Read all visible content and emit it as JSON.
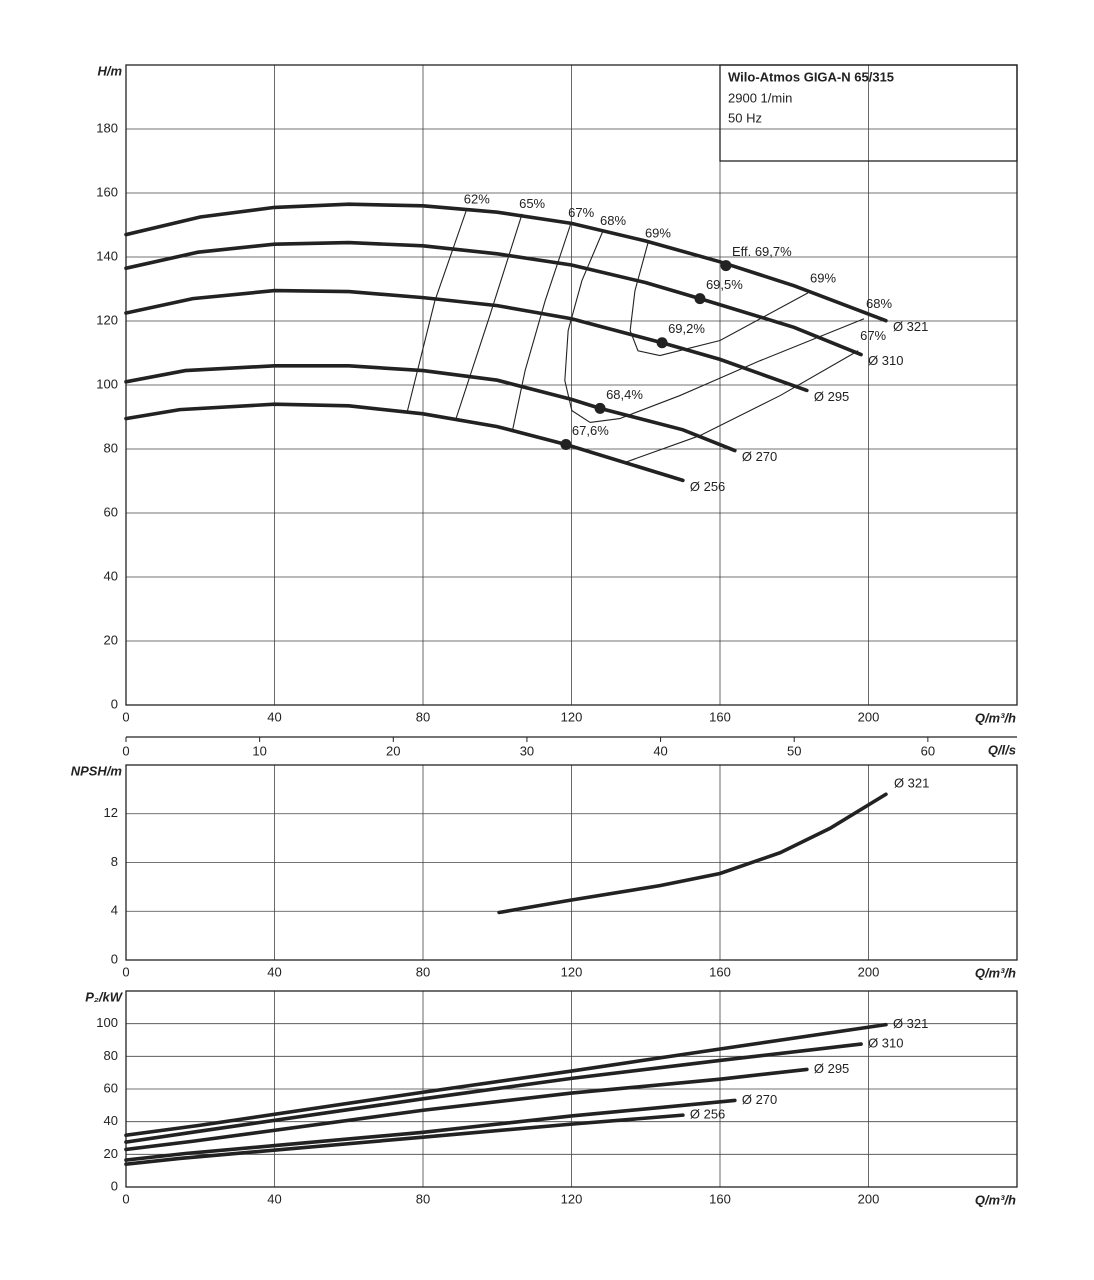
{
  "chart_data": [
    {
      "type": "line",
      "title": "Wilo-Atmos GIGA-N 65/315",
      "subtitle": [
        "2900 1/min",
        "50 Hz"
      ],
      "ylabel": "H/m",
      "xlabel": "Q/m³/h",
      "xlim": [
        0,
        240
      ],
      "xticks": [
        0,
        40,
        80,
        120,
        160,
        200
      ],
      "ylim": [
        0,
        200
      ],
      "yticks": [
        0,
        20,
        40,
        60,
        80,
        100,
        120,
        140,
        160,
        180
      ],
      "grid": true,
      "color": "#222",
      "series": [
        {
          "name": "Ø 321",
          "x": [
            0,
            20,
            40,
            60,
            80,
            100,
            120,
            140,
            160,
            180,
            204.7
          ],
          "values": [
            147,
            152.5,
            155.5,
            156.5,
            156,
            154,
            150.5,
            145,
            138.5,
            131,
            120.1
          ]
        },
        {
          "name": "Ø 310",
          "x": [
            0,
            19.4,
            40,
            60,
            80,
            100,
            120,
            140,
            154.6,
            180,
            198
          ],
          "values": [
            136.5,
            141.5,
            144,
            144.5,
            143.5,
            141,
            137.5,
            132,
            127,
            118,
            109.5
          ]
        },
        {
          "name": "Ø 295",
          "x": [
            0,
            18,
            40,
            60,
            80,
            100,
            120,
            144.4,
            160,
            183.4
          ],
          "values": [
            122.5,
            127,
            129.5,
            129.2,
            127.3,
            124.8,
            120.7,
            113.2,
            108,
            98.3
          ]
        },
        {
          "name": "Ø 270",
          "x": [
            0,
            16,
            40,
            60,
            80,
            100,
            120,
            127.7,
            150,
            164
          ],
          "values": [
            101,
            104.5,
            106,
            106,
            104.5,
            101.5,
            95.5,
            92.7,
            86,
            79.5
          ]
        },
        {
          "name": "Ø 256",
          "x": [
            0,
            14.5,
            40,
            60,
            80,
            100,
            118.5,
            150
          ],
          "values": [
            89.5,
            92.3,
            94,
            93.5,
            91,
            87,
            81.4,
            70.2
          ]
        }
      ],
      "efficiency_points": [
        {
          "label": "Eff. 69,7%",
          "x": 161.6,
          "y": 137.3
        },
        {
          "label": "69,5%",
          "x": 154.6,
          "y": 127
        },
        {
          "label": "69,2%",
          "x": 144.4,
          "y": 113.2
        },
        {
          "label": "68,4%",
          "x": 127.7,
          "y": 92.7
        },
        {
          "label": "67,6%",
          "x": 118.5,
          "y": 81.4
        }
      ],
      "iso_efficiency": [
        {
          "label": "62%",
          "x": [
            91.8,
            83.2,
            75.7
          ],
          "y": [
            155,
            126.3,
            91.4
          ]
        },
        {
          "label": "65%",
          "x": [
            106.7,
            98,
            88.9
          ],
          "y": [
            153.5,
            121.7,
            89.5
          ]
        },
        {
          "label": "67%",
          "x": [
            119.9,
            112.9,
            107.5,
            104
          ],
          "y": [
            150.7,
            126.3,
            104.5,
            85.2
          ]
        },
        {
          "label": "68%",
          "x": [
            128.5,
            122.8,
            119.1,
            118.2,
            120.1,
            125
          ],
          "y": [
            148.2,
            132.6,
            117,
            101.4,
            92,
            88.3
          ]
        },
        {
          "label": "69%",
          "x": [
            140.6,
            137.1,
            135.8,
            137.9,
            143.8
          ],
          "y": [
            144.4,
            129.5,
            117,
            110.7,
            109.2
          ]
        },
        {
          "label": "69%",
          "x": [
            143.8,
            160,
            183.7
          ],
          "y": [
            109.2,
            113.9,
            128.8
          ]
        },
        {
          "label": "68%",
          "x": [
            125,
            133,
            149.2,
            170.8,
            198.8
          ],
          "y": [
            88.3,
            89.5,
            96.7,
            107.6,
            120.7
          ]
        },
        {
          "label": "67%",
          "x": [
            134.4,
            154.6,
            176.2,
            197.2
          ],
          "y": [
            75.8,
            84.2,
            96.7,
            110.7
          ]
        }
      ],
      "x2label": "Q/l/s",
      "x2lim": [
        0,
        66.67
      ],
      "x2ticks": [
        0,
        10,
        20,
        30,
        40,
        50,
        60
      ]
    },
    {
      "type": "line",
      "ylabel": "NPSH/m",
      "xlabel": "Q/m³/h",
      "xlim": [
        0,
        240
      ],
      "xticks": [
        0,
        40,
        80,
        120,
        160,
        200
      ],
      "ylim": [
        0,
        16
      ],
      "yticks": [
        0,
        4,
        8,
        12
      ],
      "grid": true,
      "color": "#222",
      "series": [
        {
          "name": "Ø 321",
          "x": [
            100.5,
            119.6,
            143.8,
            160,
            176.2,
            189.6,
            204.7
          ],
          "values": [
            3.9,
            4.9,
            6.1,
            7.1,
            8.8,
            10.8,
            13.6
          ]
        }
      ]
    },
    {
      "type": "line",
      "ylabel": "P₂/kW",
      "xlabel": "Q/m³/h",
      "xlim": [
        0,
        240
      ],
      "xticks": [
        0,
        40,
        80,
        120,
        160,
        200
      ],
      "ylim": [
        0,
        120
      ],
      "yticks": [
        0,
        20,
        40,
        60,
        80,
        100
      ],
      "grid": true,
      "color": "#222",
      "series": [
        {
          "name": "Ø 321",
          "x": [
            0,
            20,
            80,
            120,
            160,
            204.7
          ],
          "values": [
            31.7,
            37.8,
            58,
            71,
            84.5,
            99.4
          ]
        },
        {
          "name": "Ø 310",
          "x": [
            0,
            19.4,
            80,
            120,
            160,
            198
          ],
          "values": [
            27.5,
            34,
            54,
            66.5,
            77.5,
            87.5
          ]
        },
        {
          "name": "Ø 295",
          "x": [
            0,
            18,
            80,
            120,
            160,
            183.4
          ],
          "values": [
            23,
            28,
            47,
            57.5,
            66,
            72
          ]
        },
        {
          "name": "Ø 270",
          "x": [
            0,
            16,
            80,
            120,
            164
          ],
          "values": [
            16.5,
            20.5,
            33.5,
            43.5,
            53
          ]
        },
        {
          "name": "Ø 256",
          "x": [
            0,
            14.5,
            80,
            120,
            150
          ],
          "values": [
            14,
            17.5,
            30.5,
            38.5,
            44
          ]
        }
      ]
    }
  ]
}
